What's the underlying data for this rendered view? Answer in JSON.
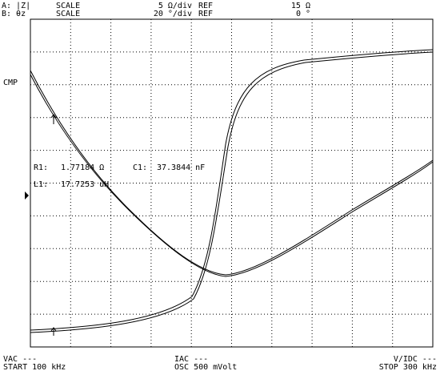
{
  "header": {
    "trace_a": {
      "label": "A: |Z|",
      "scale_label": "SCALE",
      "scale": "5 Ω/div",
      "ref_label": "REF",
      "ref": "15 Ω"
    },
    "trace_b": {
      "label": "B: θz",
      "scale_label": "SCALE",
      "scale": "20 °/div",
      "ref_label": "REF",
      "ref": "0 °"
    }
  },
  "side_label": "CMP",
  "readout": {
    "r1_label": "R1:",
    "r1": "1.77184 Ω",
    "c1_label": "C1:",
    "c1": "37.3844 nF",
    "l1_label": "L1:",
    "l1": "17.7253 uH"
  },
  "footer": {
    "vac": "VAC ---",
    "start": "START 100 kHz",
    "iac": "IAC ---",
    "osc": "OSC 500 mVolt",
    "vidc": "V/IDC ---",
    "stop": "STOP 300 kHz"
  }
}
